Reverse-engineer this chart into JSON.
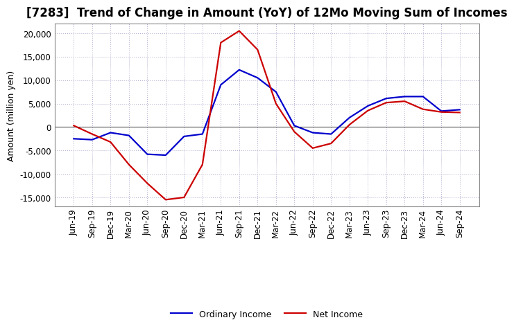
{
  "title": "[7283]  Trend of Change in Amount (YoY) of 12Mo Moving Sum of Incomes",
  "ylabel": "Amount (million yen)",
  "x_labels": [
    "Jun-19",
    "Sep-19",
    "Dec-19",
    "Mar-20",
    "Jun-20",
    "Sep-20",
    "Dec-20",
    "Mar-21",
    "Jun-21",
    "Sep-21",
    "Dec-21",
    "Mar-22",
    "Jun-22",
    "Sep-22",
    "Dec-22",
    "Mar-23",
    "Jun-23",
    "Sep-23",
    "Dec-23",
    "Mar-24",
    "Jun-24",
    "Sep-24"
  ],
  "ordinary_income": [
    -2500,
    -2700,
    -1200,
    -1800,
    -5800,
    -6000,
    -2000,
    -1500,
    9000,
    12200,
    10500,
    7500,
    300,
    -1200,
    -1500,
    2000,
    4500,
    6100,
    6500,
    6500,
    3400,
    3700
  ],
  "net_income": [
    300,
    -1500,
    -3200,
    -8000,
    -12000,
    -15500,
    -15000,
    -8000,
    18000,
    20500,
    16500,
    5000,
    -1000,
    -4500,
    -3500,
    500,
    3500,
    5200,
    5500,
    3800,
    3200,
    3100
  ],
  "ordinary_income_color": "#0000CC",
  "net_income_color": "#CC0000",
  "ylim": [
    -17000,
    22000
  ],
  "yticks": [
    -15000,
    -10000,
    -5000,
    0,
    5000,
    10000,
    15000,
    20000
  ],
  "bg_color": "#FFFFFF",
  "grid_color": "#AAAACC",
  "line_width": 1.6,
  "title_fontsize": 12,
  "axis_label_fontsize": 9,
  "tick_fontsize": 8.5,
  "legend_fontsize": 9
}
